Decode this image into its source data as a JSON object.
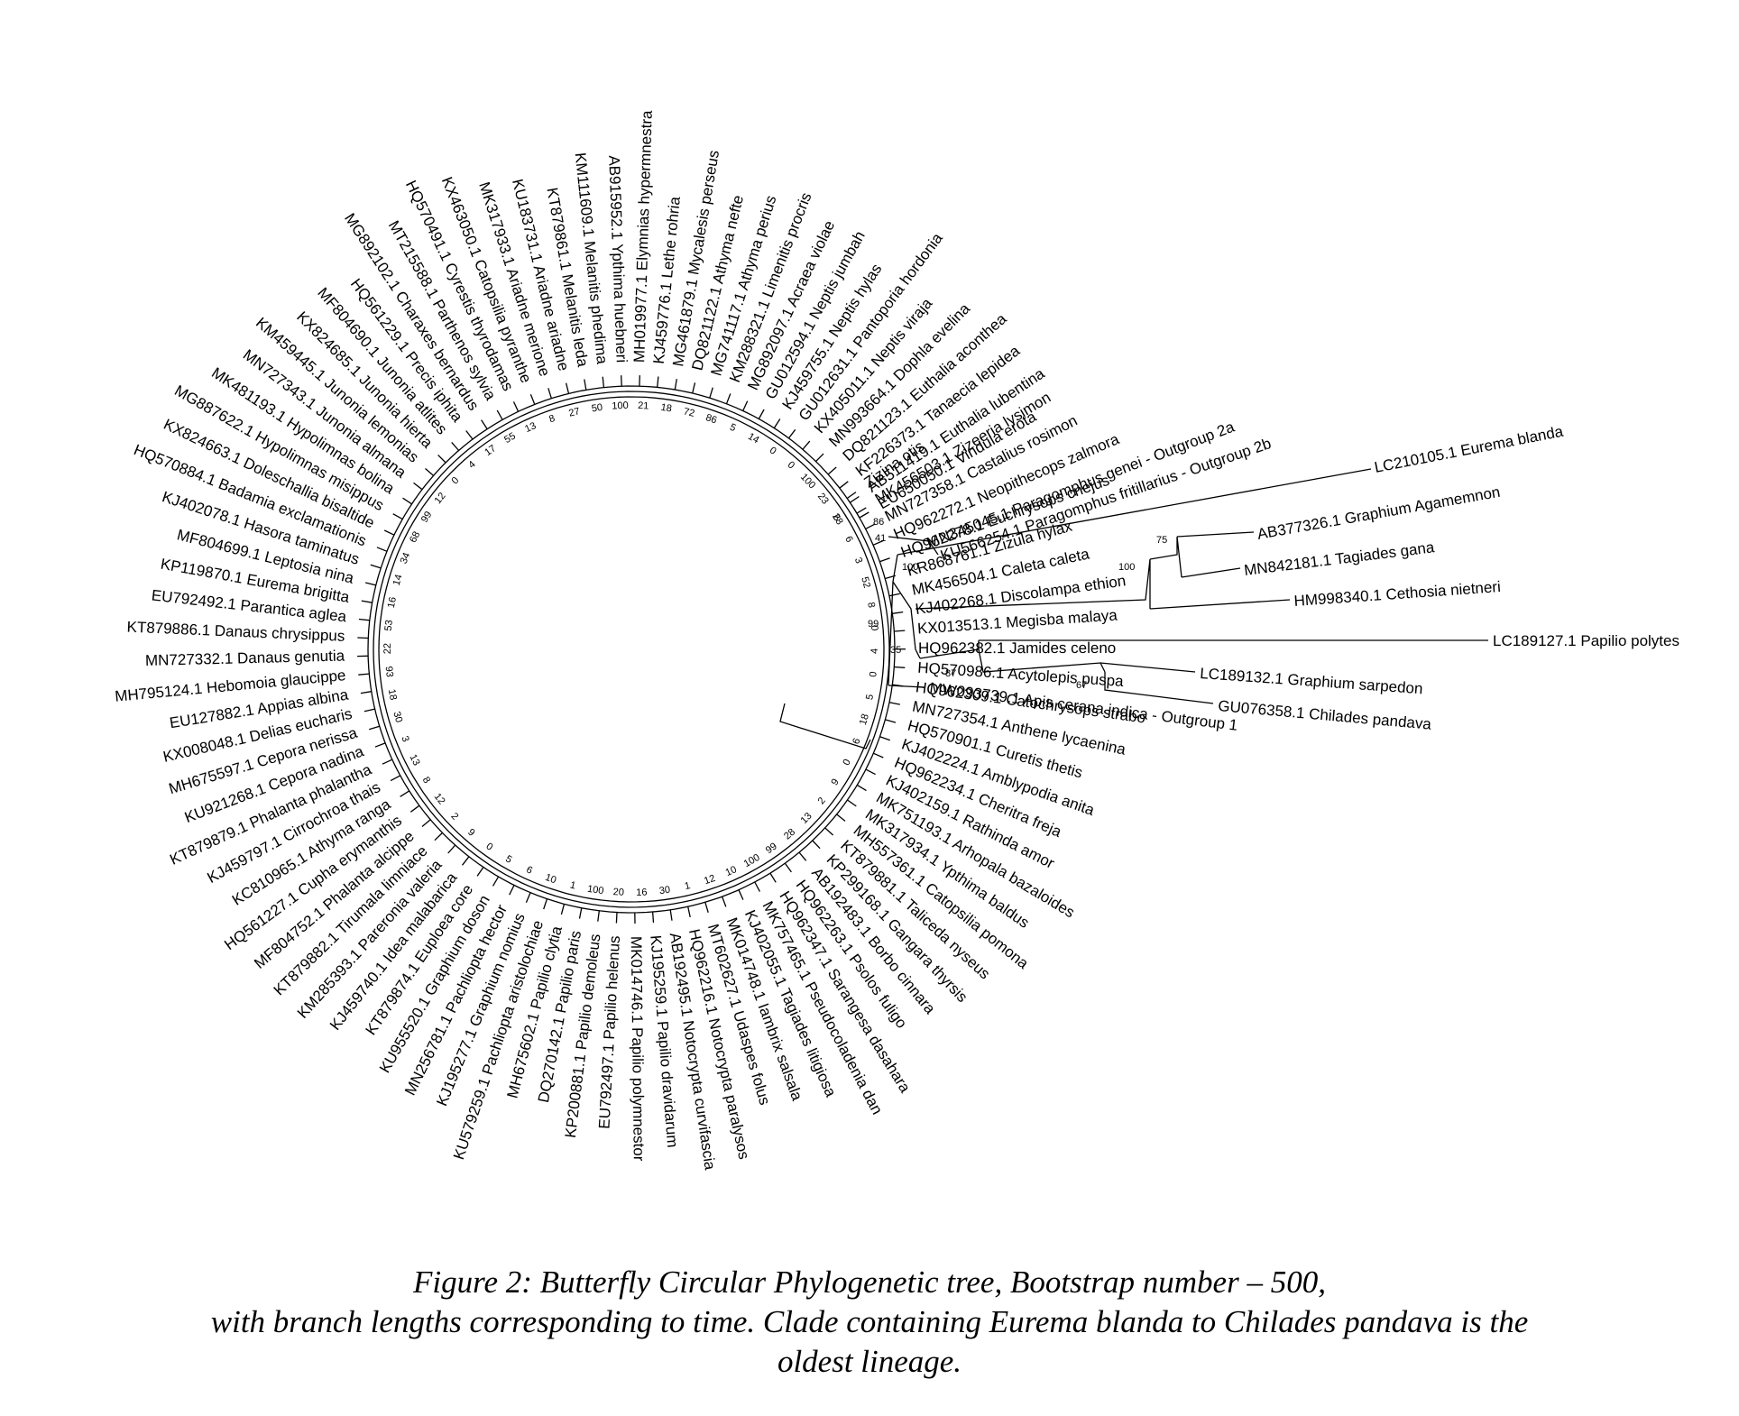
{
  "figure": {
    "caption_lines": [
      "Figure 2: Butterfly Circular Phylogenetic tree, Bootstrap number – 500,",
      "with branch lengths corresponding to time. Clade containing Eurema blanda to Chilades pandava is the",
      "oldest lineage."
    ]
  },
  "tree": {
    "outgroup_labels": [
      "MN345045.1 Paragomphus genei - Outgroup 2a",
      "KU566254.1 Paragomphus fritillarius - Outgroup 2b",
      "MW093739.1 Apis cerana indica - Outgroup 1"
    ],
    "old_clade_labels": [
      "LC210105.1 Eurema blanda",
      "AB377326.1 Graphium Agamemnon",
      "MN842181.1 Tagiades gana",
      "HM998340.1 Cethosia nietneri",
      "LC189127.1 Papilio polytes",
      "LC189132.1 Graphium sarpedon",
      "GU076358.1 Chilades pandava"
    ],
    "old_clade_bootstrap": [
      "100",
      "75",
      "100",
      "99",
      "35",
      "87",
      "67",
      "86",
      "41"
    ],
    "circle_leaves": [
      "EU650050.1 Vindula erota",
      "AB511419.1 Euthalia lubentina",
      "KF226373.1 Tanaecia lepidea",
      "DQ821123.1 Euthalia aconthea",
      "MN993664.1 Dophla evelina",
      "KX405011.1 Neptis viraja",
      "GU012631.1 Pantoporia hordonia",
      "KJ459755.1 Neptis hylas",
      "GU012594.1 Neptis jumbah",
      "MG892097.1 Acraea violae",
      "KM288321.1 Limenitis procris",
      "MG741117.1 Athyma perius",
      "DQ821122.1 Athyma nefte",
      "MG461879.1 Mycalesis perseus",
      "KJ459776.1 Lethe rohria",
      "MH019977.1 Elymnias hypermnestra",
      "AB915952.1 Ypthima huebneri",
      "KM111609.1 Melanitis phedima",
      "KT879861.1 Melanitis leda",
      "KU183731.1 Ariadne ariadne",
      "MK317933.1 Ariadne merione",
      "KX463050.1 Catopsilia pyranthe",
      "HQ570491.1 Cyrestis thyrodamas",
      "MT215588.1 Parthenos sylvia",
      "MG892102.1 Charaxes bernardus",
      "HQ561229.1 Precis iphita",
      "MF804690.1 Junonia atlites",
      "KX824685.1 Junonia hierta",
      "KM459445.1 Junonia lemonias",
      "MN727343.1 Junonia almana",
      "MK481193.1 Hypolimnas bolina",
      "MG887622.1 Hypolimnas misippus",
      "KX824663.1 Doleschallia bisaltide",
      "HQ570884.1 Badamia exclamationis",
      "KJ402078.1 Hasora taminatus",
      "MF804699.1 Leptosia nina",
      "KP119870.1 Eurema brigitta",
      "EU792492.1 Parantica aglea",
      "KT879886.1 Danaus chrysippus",
      "MN727332.1 Danaus genutia",
      "MH795124.1 Hebomoia glaucippe",
      "EU127882.1 Appias albina",
      "KX008048.1 Delias eucharis",
      "MH675597.1 Cepora nerissa",
      "KU921268.1 Cepora nadina",
      "KT879879.1 Phalanta phalantha",
      "KJ459797.1 Cirrochroa thais",
      "KC810965.1 Athyma ranga",
      "HQ561227.1 Cupha erymanthis",
      "MF804752.1 Phalanta alcippe",
      "KT879882.1 Tirumala limniace",
      "KM285393.1 Pareronia valeria",
      "KJ459740.1 Idea malabarica",
      "KT879874.1 Euploea core",
      "KU955520.1 Graphium doson",
      "MN256781.1 Pachliopta hector",
      "KJ195277.1 Graphium nomius",
      "KU579259.1 Pachliopta aristolochiae",
      "MH675602.1 Papilio clytia",
      "DQ270142.1 Papilio paris",
      "KP200881.1 Papilio demoleus",
      "EU792497.1 Papilio helenus",
      "MK014746.1 Papilio polymnestor",
      "KJ195259.1 Papilio dravidarum",
      "AB192495.1 Notocrypta curvifascia",
      "HQ962216.1 Notocrypta paralysos",
      "MT602627.1 Udaspes folus",
      "MK014748.1 Iambrix salsala",
      "KJ402055.1 Tagiades litigiosa",
      "MK757465.1 Pseudocoladenia dan",
      "HQ962347.1 Sarangesa dasahara",
      "HQ962263.1 Psolos fuligo",
      "AB192483.1 Borbo cinnara",
      "KP299168.1 Gangara thyrsis",
      "KT879881.1 Taliceda nyseus",
      "MH557361.1 Catopsilia pomona",
      "MK317934.1 Ypthima baldus",
      "MK751193.1 Arhopala bazaloides",
      "KJ402159.1 Rathinda amor",
      "HQ962234.1 Cheritra freja",
      "KJ402224.1 Amblypodia anita",
      "HQ570901.1 Curetis thetis",
      "MN727354.1 Anthene lycaenina",
      "HQ962309.1 Catochrysops strabo",
      "HQ570986.1 Acytolepis puspa",
      "HQ962382.1 Jamides celeno",
      "KX013513.1 Megisba malaya",
      "KJ402268.1 Discolampa ethion",
      "MK456504.1 Caleta caleta",
      "KR868761.1 Zizula hylax",
      "HQ962278.1 Euchrysops cnejus",
      "HQ962272.1 Neopithecops zalmora",
      "MN727358.1 Castalius rosimon",
      "MK456503.1 Zizeeria lysimon",
      "Zizina otis"
    ],
    "circle_bootstrap": [
      "6",
      "23",
      "100",
      "0",
      "0",
      "14",
      "5",
      "86",
      "72",
      "18",
      "21",
      "100",
      "50",
      "27",
      "8",
      "13",
      "55",
      "17",
      "4",
      "0",
      "12",
      "99",
      "68",
      "34",
      "14",
      "16",
      "53",
      "22",
      "93",
      "18",
      "30",
      "3",
      "13",
      "8",
      "12",
      "2",
      "9",
      "0",
      "5",
      "6",
      "10",
      "1",
      "100",
      "20",
      "16",
      "30",
      "1",
      "12",
      "10",
      "100",
      "99",
      "28",
      "13",
      "2",
      "9",
      "0",
      "6",
      "18",
      "5",
      "0",
      "4",
      "0",
      "8",
      "52",
      "3",
      "6",
      "28"
    ]
  }
}
